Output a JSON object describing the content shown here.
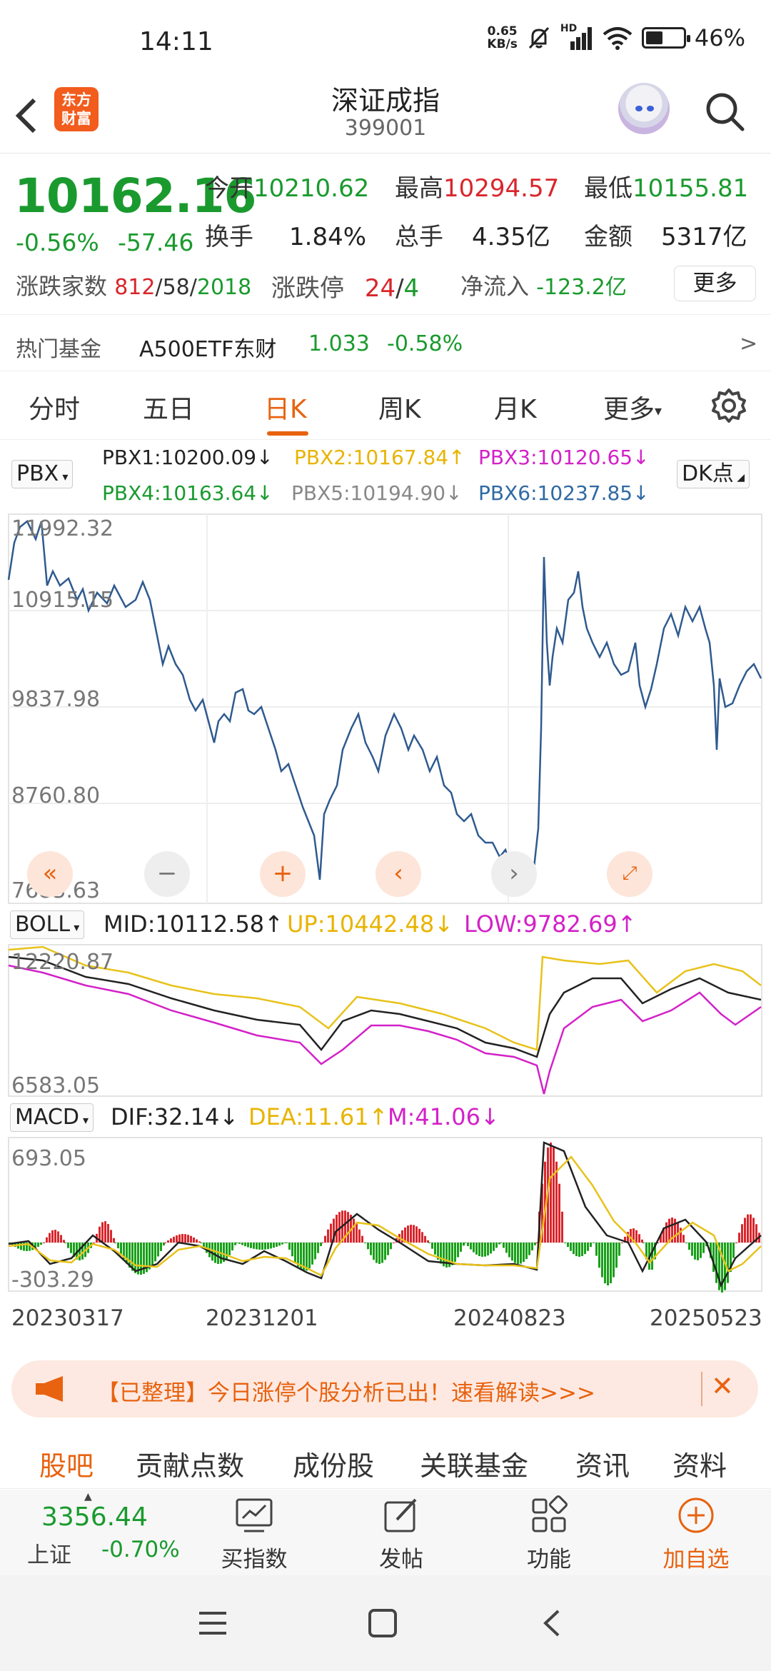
{
  "status": {
    "time": "14:11",
    "net_speed_value": "0.65",
    "net_speed_unit": "KB/s",
    "network": "HD",
    "battery": "46%",
    "battery_level": 0.46
  },
  "header": {
    "back": "‹",
    "logo_line1": "东方",
    "logo_line2": "财富",
    "title": "深证成指",
    "code": "399001"
  },
  "quote": {
    "price": "10162.16",
    "change_pct": "-0.56%",
    "change": "-57.46",
    "open_label": "今开",
    "open": "10210.62",
    "high_label": "最高",
    "high": "10294.57",
    "low_label": "最低",
    "low": "10155.81",
    "turnover_label": "换手",
    "turnover": "1.84%",
    "volume_label": "总手",
    "volume": "4.35亿",
    "amount_label": "金额",
    "amount": "5317亿",
    "updown_label": "涨跌家数",
    "up_count": "812",
    "flat_count": "58",
    "down_count": "2018",
    "limit_label": "涨跌停",
    "limit_up": "24",
    "limit_down": "4",
    "inflow_label": "净流入",
    "inflow": "-123.2亿",
    "more_button": "更多"
  },
  "hot_fund": {
    "label": "热门基金",
    "name": "A500ETF东财",
    "price": "1.033",
    "change": "-0.58%",
    "arrow": ">"
  },
  "tabs": [
    {
      "label": "分时",
      "active": false
    },
    {
      "label": "五日",
      "active": false
    },
    {
      "label": "日K",
      "active": true
    },
    {
      "label": "周K",
      "active": false
    },
    {
      "label": "月K",
      "active": false
    },
    {
      "label": "更多",
      "active": false
    }
  ],
  "main_chart": {
    "indicator": "PBX",
    "dk_button": "DK点",
    "legend": [
      {
        "text": "PBX1:10200.09",
        "arrow": "↓",
        "color": "#222222"
      },
      {
        "text": "PBX2:10167.84",
        "arrow": "↑",
        "color": "#e8b400"
      },
      {
        "text": "PBX3:10120.65",
        "arrow": "↓",
        "color": "#d321c8"
      },
      {
        "text": "PBX4:10163.64",
        "arrow": "↓",
        "color": "#1a9a2e"
      },
      {
        "text": "PBX5:10194.90",
        "arrow": "↓",
        "color": "#888888"
      },
      {
        "text": "PBX6:10237.85",
        "arrow": "↓",
        "color": "#2f6aa3"
      }
    ],
    "axis": [
      "11992.32",
      "10915.15",
      "9837.98",
      "8760.80",
      "7683.63"
    ]
  },
  "boll": {
    "indicator": "BOLL",
    "mid": "MID:10112.58",
    "mid_arrow": "↑",
    "up": "UP:10442.48",
    "up_arrow": "↓",
    "low": "LOW:9782.69",
    "low_arrow": "↑",
    "axis_top": "12220.87",
    "axis_bottom": "6583.05"
  },
  "macd": {
    "indicator": "MACD",
    "dif": "DIF:32.14",
    "dif_arrow": "↓",
    "dea": "DEA:11.61",
    "dea_arrow": "↑",
    "m": "M:41.06",
    "m_arrow": "↓",
    "axis_top": "693.05",
    "axis_bottom": "-303.29"
  },
  "dates": [
    "20230317",
    "20231201",
    "20240823",
    "20250523"
  ],
  "chart_data": {
    "type": "line",
    "series": [],
    "x_ticks": [
      "20230317",
      "20231201",
      "20240823",
      "20250523"
    ],
    "y_ticks": [
      11992.32,
      10915.15,
      9837.98,
      8760.8,
      7683.63
    ],
    "ylim": [
      7683.63,
      11992.32
    ],
    "grid": true
  },
  "banner": {
    "text": "【已整理】今日涨停个股分析已出！速看解读>>>",
    "close": "✕"
  },
  "bottom_tabs": [
    {
      "label": "股吧",
      "active": true
    },
    {
      "label": "贡献点数",
      "active": false
    },
    {
      "label": "成份股",
      "active": false
    },
    {
      "label": "关联基金",
      "active": false
    },
    {
      "label": "资讯",
      "active": false
    },
    {
      "label": "资料",
      "active": false
    }
  ],
  "toolbar": {
    "index_value": "3356.44",
    "index_name": "上证",
    "index_change": "-0.70%",
    "buy_index": "买指数",
    "post": "发帖",
    "functions": "功能",
    "add_watch": "加自选"
  },
  "colors": {
    "green": "#1a9a2e",
    "red": "#d9262c",
    "accent": "#e8620f",
    "line_blue": "#2f5a8f"
  }
}
